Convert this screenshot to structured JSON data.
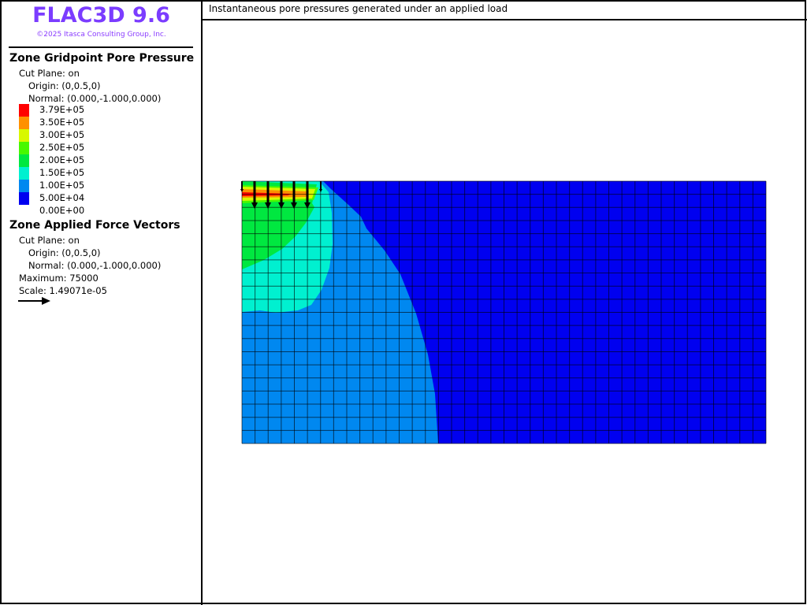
{
  "app": {
    "title": "FLAC3D 9.6",
    "copyright": "©2025 Itasca Consulting Group, Inc."
  },
  "plot_title": "Instantaneous pore pressures generated under an applied load",
  "legend": {
    "pore": {
      "heading": "Zone Gridpoint Pore Pressure",
      "cut_plane": "Cut Plane: on",
      "origin": "Origin: (0,0.5,0)",
      "normal": "Normal: (0.000,-1.000,0.000)",
      "levels": [
        {
          "label": "3.79E+05",
          "color": "#ff0000"
        },
        {
          "label": "3.50E+05",
          "color": "#ff9000"
        },
        {
          "label": "3.00E+05",
          "color": "#d8f800"
        },
        {
          "label": "2.50E+05",
          "color": "#48f800"
        },
        {
          "label": "2.00E+05",
          "color": "#00e840"
        },
        {
          "label": "1.50E+05",
          "color": "#00f0d0"
        },
        {
          "label": "1.00E+05",
          "color": "#0088f0"
        },
        {
          "label": "5.00E+04",
          "color": "#0000f0"
        },
        {
          "label": "0.00E+00",
          "color": "#0000f0"
        }
      ]
    },
    "force": {
      "heading": "Zone Applied Force Vectors",
      "cut_plane": "Cut Plane: on",
      "origin": "Origin: (0,0.5,0)",
      "normal": "Normal: (0.000,-1.000,0.000)",
      "maximum": "Maximum: 75000",
      "scale": "Scale: 1.49071e-05"
    }
  }
}
